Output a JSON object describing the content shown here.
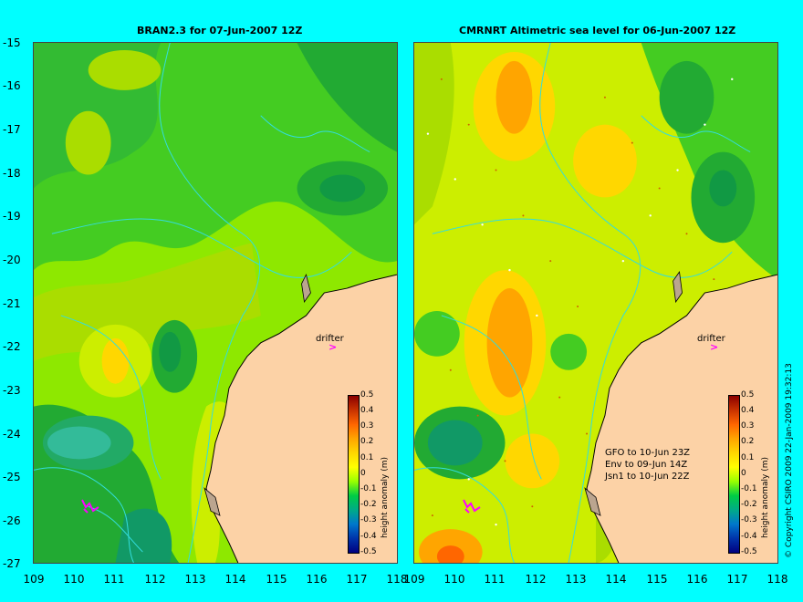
{
  "titles": {
    "left": "BRAN2.3 for 07-Jun-2007 12Z",
    "right": "CMRNRT Altimetric sea level  for 06-Jun-2007 12Z"
  },
  "y_ticks": [
    "-15",
    "-16",
    "-17",
    "-18",
    "-19",
    "-20",
    "-21",
    "-22",
    "-23",
    "-24",
    "-25",
    "-26",
    "-27"
  ],
  "x_ticks": [
    "109",
    "110",
    "111",
    "112",
    "113",
    "114",
    "115",
    "116",
    "117",
    "118"
  ],
  "drifter_label": "drifter",
  "colorbar": {
    "ticks": [
      "0.5",
      "0.4",
      "0.3",
      "0.2",
      "0.1",
      "0",
      "-0.1",
      "-0.2",
      "-0.3",
      "-0.4",
      "-0.5"
    ],
    "label": "height anomaly (m)",
    "colors": [
      "#8b0000",
      "#c83200",
      "#ff6600",
      "#ffa500",
      "#ffd700",
      "#ffff00",
      "#99ff00",
      "#00cc44",
      "#00aa88",
      "#0077cc",
      "#0033aa",
      "#000080"
    ]
  },
  "satellite_passes": [
    "GFO to 10-Jun 23Z",
    "Env to 09-Jun 14Z",
    "Jsn1 to 10-Jun 22Z"
  ],
  "copyright": "© Copyright CSIRO 2009   22-Jan-2009 19:32:13",
  "colors": {
    "land": "#fcd2a6",
    "coast": "#000000",
    "shelf": "#bba58f",
    "contour": "#33dddd",
    "drifter": "#ff00ff",
    "background": "#00ffff"
  }
}
